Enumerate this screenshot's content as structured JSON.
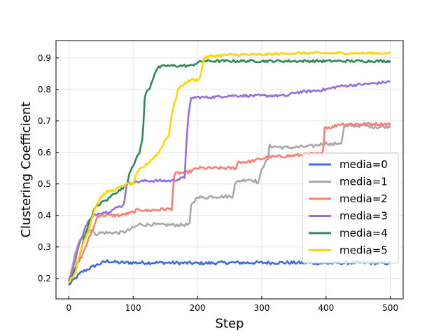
{
  "chart_data": {
    "type": "line",
    "title": "",
    "xlabel": "Step",
    "ylabel": "Clustering Coefficient",
    "xlim": [
      -20,
      520
    ],
    "ylim": [
      0.135,
      0.955
    ],
    "xticks": [
      0,
      100,
      200,
      300,
      400,
      500
    ],
    "yticks": [
      0.2,
      0.3,
      0.4,
      0.5,
      0.6,
      0.7,
      0.8,
      0.9
    ],
    "grid": true,
    "legend": "lower-right",
    "series": [
      {
        "name": "media=0",
        "color": "#4169e1",
        "x": [
          0,
          5,
          10,
          15,
          20,
          30,
          40,
          50,
          60,
          70,
          80,
          100,
          150,
          200,
          250,
          300,
          350,
          400,
          450,
          500
        ],
        "y": [
          0.18,
          0.19,
          0.2,
          0.21,
          0.22,
          0.23,
          0.24,
          0.248,
          0.255,
          0.252,
          0.25,
          0.25,
          0.25,
          0.248,
          0.25,
          0.25,
          0.25,
          0.248,
          0.25,
          0.248
        ],
        "noise": 0.005
      },
      {
        "name": "media=1",
        "color": "#a9a9a9",
        "x": [
          0,
          5,
          10,
          15,
          20,
          25,
          30,
          35,
          40,
          50,
          60,
          75,
          80,
          90,
          95,
          100,
          110,
          120,
          130,
          140,
          150,
          160,
          170,
          180,
          188,
          190,
          200,
          210,
          220,
          240,
          255,
          258,
          265,
          280,
          290,
          295,
          300,
          310,
          312,
          340,
          380,
          390,
          400,
          410,
          420,
          425,
          427,
          430,
          440,
          460,
          480,
          500
        ],
        "y": [
          0.19,
          0.23,
          0.28,
          0.31,
          0.33,
          0.34,
          0.345,
          0.36,
          0.34,
          0.345,
          0.345,
          0.345,
          0.345,
          0.35,
          0.355,
          0.36,
          0.372,
          0.37,
          0.372,
          0.37,
          0.37,
          0.37,
          0.37,
          0.37,
          0.372,
          0.43,
          0.46,
          0.455,
          0.46,
          0.46,
          0.46,
          0.5,
          0.51,
          0.515,
          0.51,
          0.5,
          0.55,
          0.58,
          0.62,
          0.615,
          0.62,
          0.625,
          0.63,
          0.625,
          0.63,
          0.63,
          0.68,
          0.68,
          0.685,
          0.685,
          0.68,
          0.683
        ],
        "noise": 0.005
      },
      {
        "name": "media=2",
        "color": "#fa8072",
        "x": [
          0,
          5,
          10,
          15,
          20,
          30,
          40,
          45,
          60,
          80,
          100,
          110,
          120,
          150,
          160,
          163,
          165,
          170,
          180,
          190,
          200,
          220,
          240,
          260,
          263,
          280,
          300,
          310,
          350,
          380,
          395,
          398,
          410,
          420,
          450,
          480,
          500
        ],
        "y": [
          0.19,
          0.21,
          0.23,
          0.25,
          0.27,
          0.32,
          0.37,
          0.4,
          0.4,
          0.4,
          0.41,
          0.42,
          0.415,
          0.42,
          0.42,
          0.52,
          0.53,
          0.535,
          0.535,
          0.54,
          0.55,
          0.55,
          0.55,
          0.55,
          0.57,
          0.57,
          0.58,
          0.585,
          0.59,
          0.595,
          0.595,
          0.68,
          0.68,
          0.69,
          0.69,
          0.69,
          0.69
        ],
        "noise": 0.005
      },
      {
        "name": "media=3",
        "color": "#9370db",
        "x": [
          0,
          5,
          10,
          15,
          20,
          25,
          30,
          40,
          50,
          60,
          70,
          80,
          85,
          88,
          90,
          100,
          120,
          140,
          160,
          180,
          182,
          185,
          190,
          195,
          200,
          220,
          250,
          300,
          340,
          350,
          380,
          400,
          420,
          450,
          480,
          500
        ],
        "y": [
          0.19,
          0.22,
          0.26,
          0.3,
          0.33,
          0.36,
          0.38,
          0.4,
          0.41,
          0.41,
          0.42,
          0.43,
          0.43,
          0.47,
          0.5,
          0.505,
          0.51,
          0.51,
          0.51,
          0.52,
          0.6,
          0.7,
          0.77,
          0.775,
          0.775,
          0.775,
          0.78,
          0.78,
          0.78,
          0.79,
          0.795,
          0.8,
          0.81,
          0.815,
          0.82,
          0.825
        ],
        "noise": 0.004
      },
      {
        "name": "media=4",
        "color": "#2e8b57",
        "x": [
          0,
          5,
          10,
          15,
          20,
          30,
          40,
          50,
          60,
          70,
          80,
          90,
          95,
          100,
          105,
          110,
          115,
          118,
          120,
          125,
          130,
          135,
          140,
          150,
          160,
          170,
          180,
          190,
          200,
          210,
          250,
          300,
          350,
          400,
          450,
          500
        ],
        "y": [
          0.18,
          0.2,
          0.23,
          0.26,
          0.3,
          0.37,
          0.42,
          0.44,
          0.45,
          0.47,
          0.48,
          0.5,
          0.54,
          0.56,
          0.58,
          0.6,
          0.65,
          0.77,
          0.79,
          0.8,
          0.83,
          0.86,
          0.87,
          0.875,
          0.875,
          0.875,
          0.875,
          0.875,
          0.885,
          0.89,
          0.89,
          0.89,
          0.89,
          0.89,
          0.89,
          0.89
        ],
        "noise": 0.004
      },
      {
        "name": "media=5",
        "color": "#ffd700",
        "x": [
          0,
          5,
          10,
          15,
          20,
          30,
          40,
          50,
          60,
          70,
          80,
          90,
          100,
          105,
          110,
          120,
          130,
          140,
          150,
          155,
          160,
          165,
          170,
          175,
          180,
          190,
          200,
          205,
          210,
          220,
          250,
          300,
          350,
          400,
          450,
          500
        ],
        "y": [
          0.19,
          0.2,
          0.22,
          0.26,
          0.3,
          0.35,
          0.42,
          0.46,
          0.475,
          0.48,
          0.49,
          0.5,
          0.5,
          0.53,
          0.545,
          0.56,
          0.58,
          0.6,
          0.64,
          0.65,
          0.72,
          0.76,
          0.8,
          0.81,
          0.82,
          0.83,
          0.83,
          0.84,
          0.9,
          0.905,
          0.91,
          0.91,
          0.915,
          0.915,
          0.915,
          0.915
        ],
        "noise": 0.004
      }
    ]
  }
}
